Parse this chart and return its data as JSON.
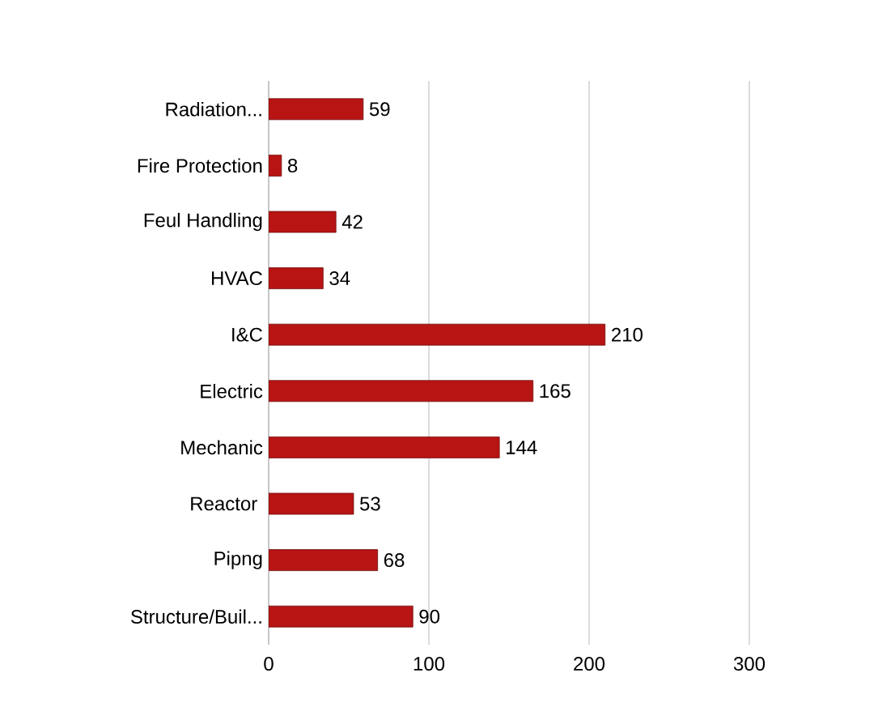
{
  "chart_data": {
    "type": "bar",
    "orientation": "horizontal",
    "categories": [
      "Radiation...",
      "Fire Protection",
      "Feul Handling",
      "HVAC",
      "I&C",
      "Electric",
      "Mechanic",
      "Reactor ",
      "Pipng",
      "Structure/Buil..."
    ],
    "values": [
      59,
      8,
      42,
      34,
      210,
      165,
      144,
      53,
      68,
      90
    ],
    "color": "#b81414",
    "xlim": [
      0,
      300
    ],
    "xticks": [
      0,
      100,
      200,
      300
    ],
    "grid": "x",
    "data_labels": true
  }
}
